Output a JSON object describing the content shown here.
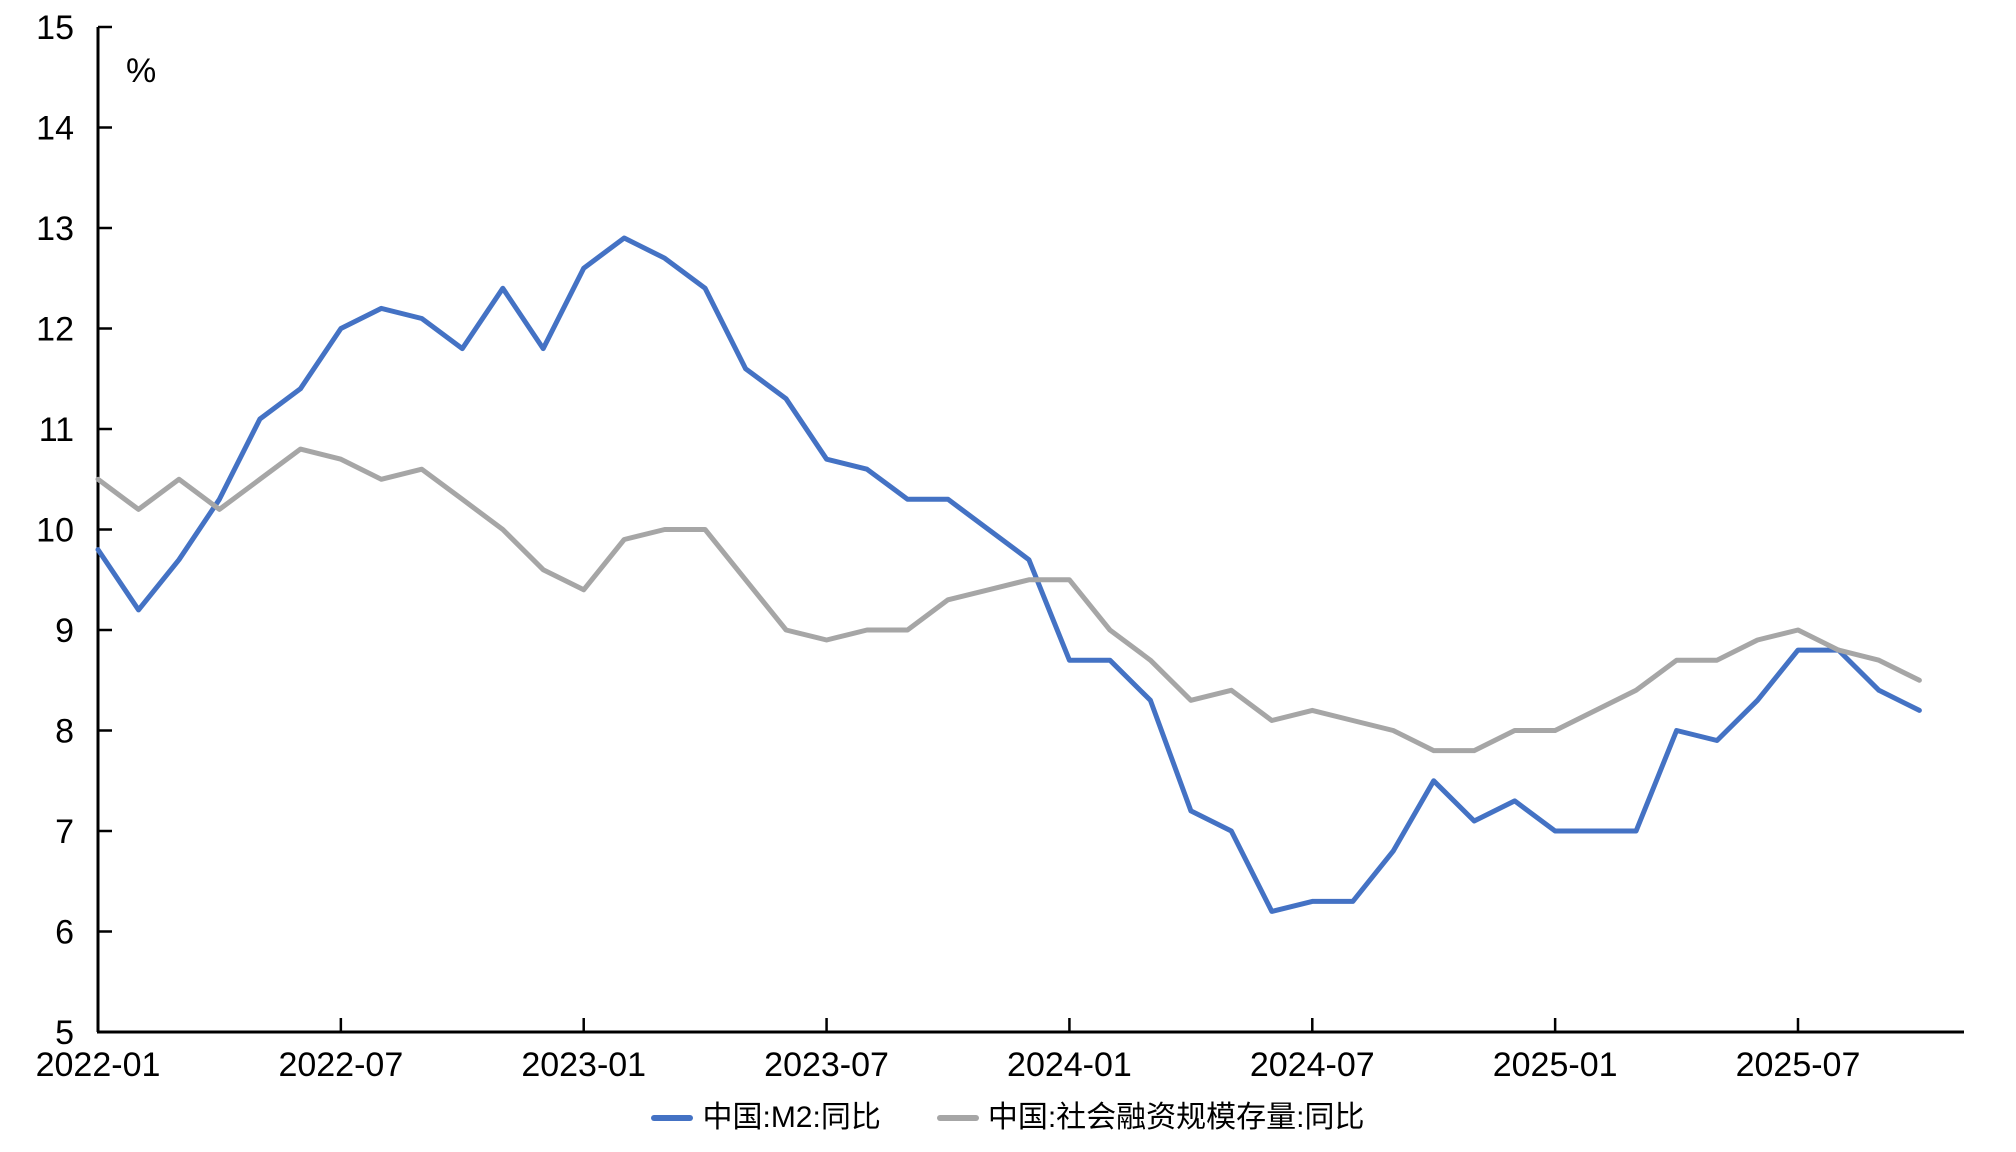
{
  "chart_data": {
    "type": "line",
    "title": "",
    "unit_label": "%",
    "xlabel": "",
    "ylabel": "%",
    "ylim": [
      5,
      15
    ],
    "grid": false,
    "legend_position": "bottom-center",
    "axis_color": "#000000",
    "background_color": "#ffffff",
    "y_ticks": [
      5,
      6,
      7,
      8,
      9,
      10,
      11,
      12,
      13,
      14,
      15
    ],
    "x_tick_labels": [
      "2022-01",
      "2022-07",
      "2023-01",
      "2023-07",
      "2024-01",
      "2024-07",
      "2025-01",
      "2025-07"
    ],
    "x_tick_month_index": [
      0,
      6,
      12,
      18,
      24,
      30,
      36,
      42
    ],
    "x": [
      "2022-01",
      "2022-02",
      "2022-03",
      "2022-04",
      "2022-05",
      "2022-06",
      "2022-07",
      "2022-08",
      "2022-09",
      "2022-10",
      "2022-11",
      "2022-12",
      "2023-01",
      "2023-02",
      "2023-03",
      "2023-04",
      "2023-05",
      "2023-06",
      "2023-07",
      "2023-08",
      "2023-09",
      "2023-10",
      "2023-11",
      "2023-12",
      "2024-01",
      "2024-02",
      "2024-03",
      "2024-04",
      "2024-05",
      "2024-06",
      "2024-07",
      "2024-08",
      "2024-09",
      "2024-10",
      "2024-11",
      "2024-12",
      "2025-01",
      "2025-02",
      "2025-03",
      "2025-04",
      "2025-05",
      "2025-06",
      "2025-07",
      "2025-08",
      "2025-09",
      "2025-10"
    ],
    "series": [
      {
        "name": "中国:M2:同比",
        "color": "#4472C4",
        "values": [
          9.8,
          9.2,
          9.7,
          10.3,
          11.1,
          11.4,
          12.0,
          12.2,
          12.1,
          11.8,
          12.4,
          11.8,
          12.6,
          12.9,
          12.7,
          12.4,
          11.6,
          11.3,
          10.7,
          10.6,
          10.3,
          10.3,
          10.0,
          9.7,
          8.7,
          8.7,
          8.3,
          7.2,
          7.0,
          6.2,
          6.3,
          6.3,
          6.8,
          7.5,
          7.1,
          7.3,
          7.0,
          7.0,
          7.0,
          8.0,
          7.9,
          8.3,
          8.8,
          8.8,
          8.4,
          8.2
        ]
      },
      {
        "name": "中国:社会融资规模存量:同比",
        "color": "#A6A6A6",
        "values": [
          10.5,
          10.2,
          10.5,
          10.2,
          10.5,
          10.8,
          10.7,
          10.5,
          10.6,
          10.3,
          10.0,
          9.6,
          9.4,
          9.9,
          10.0,
          10.0,
          9.5,
          9.0,
          8.9,
          9.0,
          9.0,
          9.3,
          9.4,
          9.5,
          9.5,
          9.0,
          8.7,
          8.3,
          8.4,
          8.1,
          8.2,
          8.1,
          8.0,
          7.8,
          7.8,
          8.0,
          8.0,
          8.2,
          8.4,
          8.7,
          8.7,
          8.9,
          9.0,
          8.8,
          8.7,
          8.5
        ]
      }
    ]
  }
}
